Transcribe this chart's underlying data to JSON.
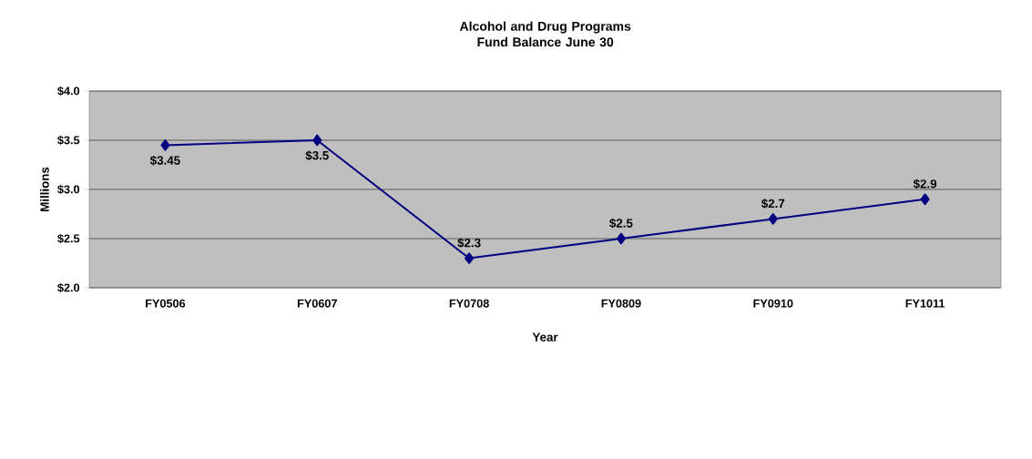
{
  "chart_data": {
    "type": "line",
    "title": "Alcohol and Drug Programs\nFund Balance June 30",
    "xlabel": "Year",
    "ylabel": "Millions",
    "categories": [
      "FY0506",
      "FY0607",
      "FY0708",
      "FY0809",
      "FY0910",
      "FY1011"
    ],
    "series": [
      {
        "color": "#000080",
        "values": [
          3.45,
          3.5,
          2.3,
          2.5,
          2.7,
          2.9
        ],
        "value_labels": [
          "$3.45",
          "$3.5",
          "$2.3",
          "$2.5",
          "$2.7",
          "$2.9"
        ]
      }
    ],
    "ylim": [
      2.0,
      4.0
    ],
    "yticks": [
      {
        "value": 2.0,
        "label": "$2.0"
      },
      {
        "value": 2.5,
        "label": "$2.5"
      },
      {
        "value": 3.0,
        "label": "$3.0"
      },
      {
        "value": 3.5,
        "label": "$3.5"
      },
      {
        "value": 4.0,
        "label": "$4.0"
      }
    ],
    "grid": "y",
    "marker": "diamond",
    "line_style": "solid"
  }
}
